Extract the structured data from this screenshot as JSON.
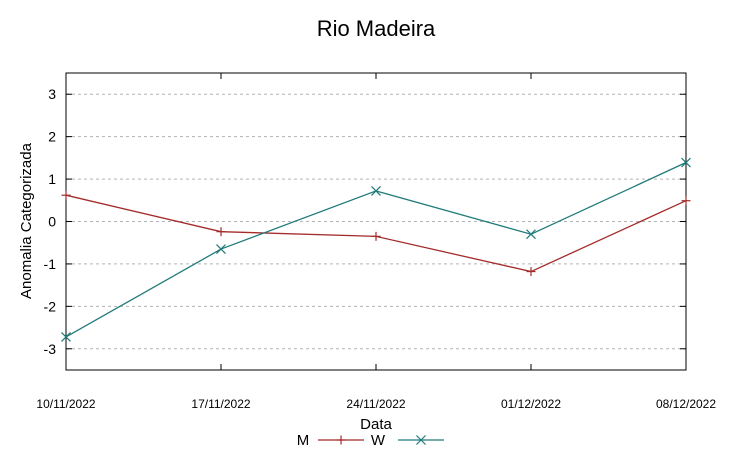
{
  "chart_data": {
    "type": "line",
    "title": "Rio Madeira",
    "xlabel": "Data",
    "ylabel": "Anomalia Categorizada",
    "categories": [
      "10/11/2022",
      "17/11/2022",
      "24/11/2022",
      "01/12/2022",
      "08/12/2022"
    ],
    "ylim": [
      -3.5,
      3.5
    ],
    "yticks": [
      -3,
      -2,
      -1,
      0,
      1,
      2,
      3
    ],
    "grid": "horizontal dashed",
    "legend_position": "bottom",
    "series": [
      {
        "name": "M",
        "values": [
          0.62,
          -0.24,
          -0.35,
          -1.18,
          0.49
        ],
        "color": "#a52a2a",
        "marker": "+"
      },
      {
        "name": "W",
        "values": [
          -2.72,
          -0.65,
          0.72,
          -0.3,
          1.39
        ],
        "color": "#227b7b",
        "marker": "x"
      }
    ]
  }
}
